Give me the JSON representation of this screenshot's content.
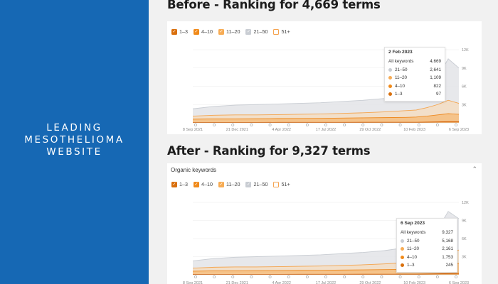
{
  "sidebar": {
    "title_lines": [
      "LEADING",
      "MESOTHELIOMA",
      "WEBSITE"
    ]
  },
  "colors": {
    "sidebar_bg": "#1668b4",
    "c13": "#d96f0c",
    "c410": "#f08a1a",
    "c1120": "#f7ac55",
    "c2150": "#c9cdd3",
    "c51": "#fbd19e"
  },
  "before": {
    "heading": "Before - Ranking for 4,669 terms",
    "legend": [
      {
        "label": "1–3",
        "checked": true,
        "color": "#d96f0c"
      },
      {
        "label": "4–10",
        "checked": true,
        "color": "#f08a1a"
      },
      {
        "label": "11–20",
        "checked": true,
        "color": "#f7ac55"
      },
      {
        "label": "21–50",
        "checked": true,
        "color": "#c9cdd3"
      },
      {
        "label": "51+",
        "checked": false,
        "color": "#f5a34f"
      }
    ],
    "tooltip": {
      "date": "2 Feb 2023",
      "rows": [
        {
          "label": "All keywords",
          "value": "4,669",
          "color": ""
        },
        {
          "label": "21–50",
          "value": "2,641",
          "color": "#c9cdd3"
        },
        {
          "label": "11–20",
          "value": "1,109",
          "color": "#f7ac55"
        },
        {
          "label": "4–10",
          "value": "822",
          "color": "#f08a1a"
        },
        {
          "label": "1–3",
          "value": "97",
          "color": "#d96f0c"
        }
      ]
    }
  },
  "after": {
    "heading": "After - Ranking for 9,327 terms",
    "panel_title": "Organic keywords",
    "legend": [
      {
        "label": "1–3",
        "checked": true,
        "color": "#d96f0c"
      },
      {
        "label": "4–10",
        "checked": true,
        "color": "#f08a1a"
      },
      {
        "label": "11–20",
        "checked": true,
        "color": "#f7ac55"
      },
      {
        "label": "21–50",
        "checked": true,
        "color": "#c9cdd3"
      },
      {
        "label": "51+",
        "checked": false,
        "color": "#f5a34f"
      }
    ],
    "tooltip": {
      "date": "6 Sep 2023",
      "rows": [
        {
          "label": "All keywords",
          "value": "9,327",
          "color": ""
        },
        {
          "label": "21–50",
          "value": "5,168",
          "color": "#c9cdd3"
        },
        {
          "label": "11–20",
          "value": "2,161",
          "color": "#f7ac55"
        },
        {
          "label": "4–10",
          "value": "1,753",
          "color": "#f08a1a"
        },
        {
          "label": "1–3",
          "value": "245",
          "color": "#d96f0c"
        }
      ]
    }
  },
  "chart_data": [
    {
      "type": "area",
      "x_tick_labels": [
        "8 Sep 2021",
        "21 Dec 2021",
        "4 Apr 2022",
        "17 Jul 2022",
        "29 Oct 2022",
        "10 Feb 2023",
        "6 Sep 2023"
      ],
      "y_tick_labels": [
        "12K",
        "9K",
        "6K",
        "3K"
      ],
      "ylim": [
        0,
        12000
      ],
      "x": [
        0,
        0.08,
        0.16,
        0.24,
        0.32,
        0.4,
        0.48,
        0.56,
        0.64,
        0.72,
        0.8,
        0.84,
        0.88,
        0.92,
        0.96,
        1.0
      ],
      "series": [
        {
          "name": "21–50",
          "values": [
            2300,
            2700,
            2900,
            3000,
            3100,
            3200,
            3300,
            3500,
            3700,
            4000,
            4500,
            4700,
            5200,
            7500,
            10500,
            9000
          ]
        },
        {
          "name": "11–20",
          "values": [
            1100,
            1250,
            1300,
            1300,
            1350,
            1400,
            1450,
            1550,
            1650,
            1800,
            2000,
            2100,
            2500,
            3000,
            3700,
            3200
          ]
        },
        {
          "name": "4–10",
          "values": [
            600,
            650,
            650,
            680,
            700,
            720,
            740,
            780,
            820,
            860,
            900,
            950,
            1100,
            1300,
            1500,
            1400
          ]
        },
        {
          "name": "1–3",
          "values": [
            60,
            65,
            66,
            70,
            72,
            75,
            78,
            82,
            88,
            92,
            95,
            97,
            120,
            150,
            200,
            180
          ]
        }
      ]
    },
    {
      "type": "area",
      "x_tick_labels": [
        "8 Sep 2021",
        "21 Dec 2021",
        "4 Apr 2022",
        "17 Jul 2022",
        "29 Oct 2022",
        "10 Feb 2023",
        "6 Sep 2023"
      ],
      "y_tick_labels": [
        "12K",
        "9K",
        "6K",
        "3K"
      ],
      "ylim": [
        0,
        12000
      ],
      "x": [
        0,
        0.08,
        0.16,
        0.24,
        0.32,
        0.4,
        0.48,
        0.56,
        0.64,
        0.72,
        0.8,
        0.84,
        0.88,
        0.92,
        0.96,
        1.0
      ],
      "series": [
        {
          "name": "21–50",
          "values": [
            2300,
            2700,
            2900,
            3000,
            3100,
            3200,
            3300,
            3500,
            3700,
            4000,
            4500,
            4700,
            5200,
            7500,
            10500,
            9300
          ]
        },
        {
          "name": "11–20",
          "values": [
            1100,
            1250,
            1300,
            1300,
            1350,
            1400,
            1450,
            1550,
            1650,
            1800,
            2000,
            2100,
            2500,
            3000,
            3700,
            4100
          ]
        },
        {
          "name": "4–10",
          "values": [
            600,
            650,
            650,
            680,
            700,
            720,
            740,
            780,
            820,
            860,
            900,
            950,
            1100,
            1300,
            1500,
            1900
          ]
        },
        {
          "name": "1–3",
          "values": [
            60,
            65,
            66,
            70,
            72,
            75,
            78,
            82,
            88,
            92,
            95,
            97,
            120,
            150,
            200,
            245
          ]
        }
      ]
    }
  ]
}
